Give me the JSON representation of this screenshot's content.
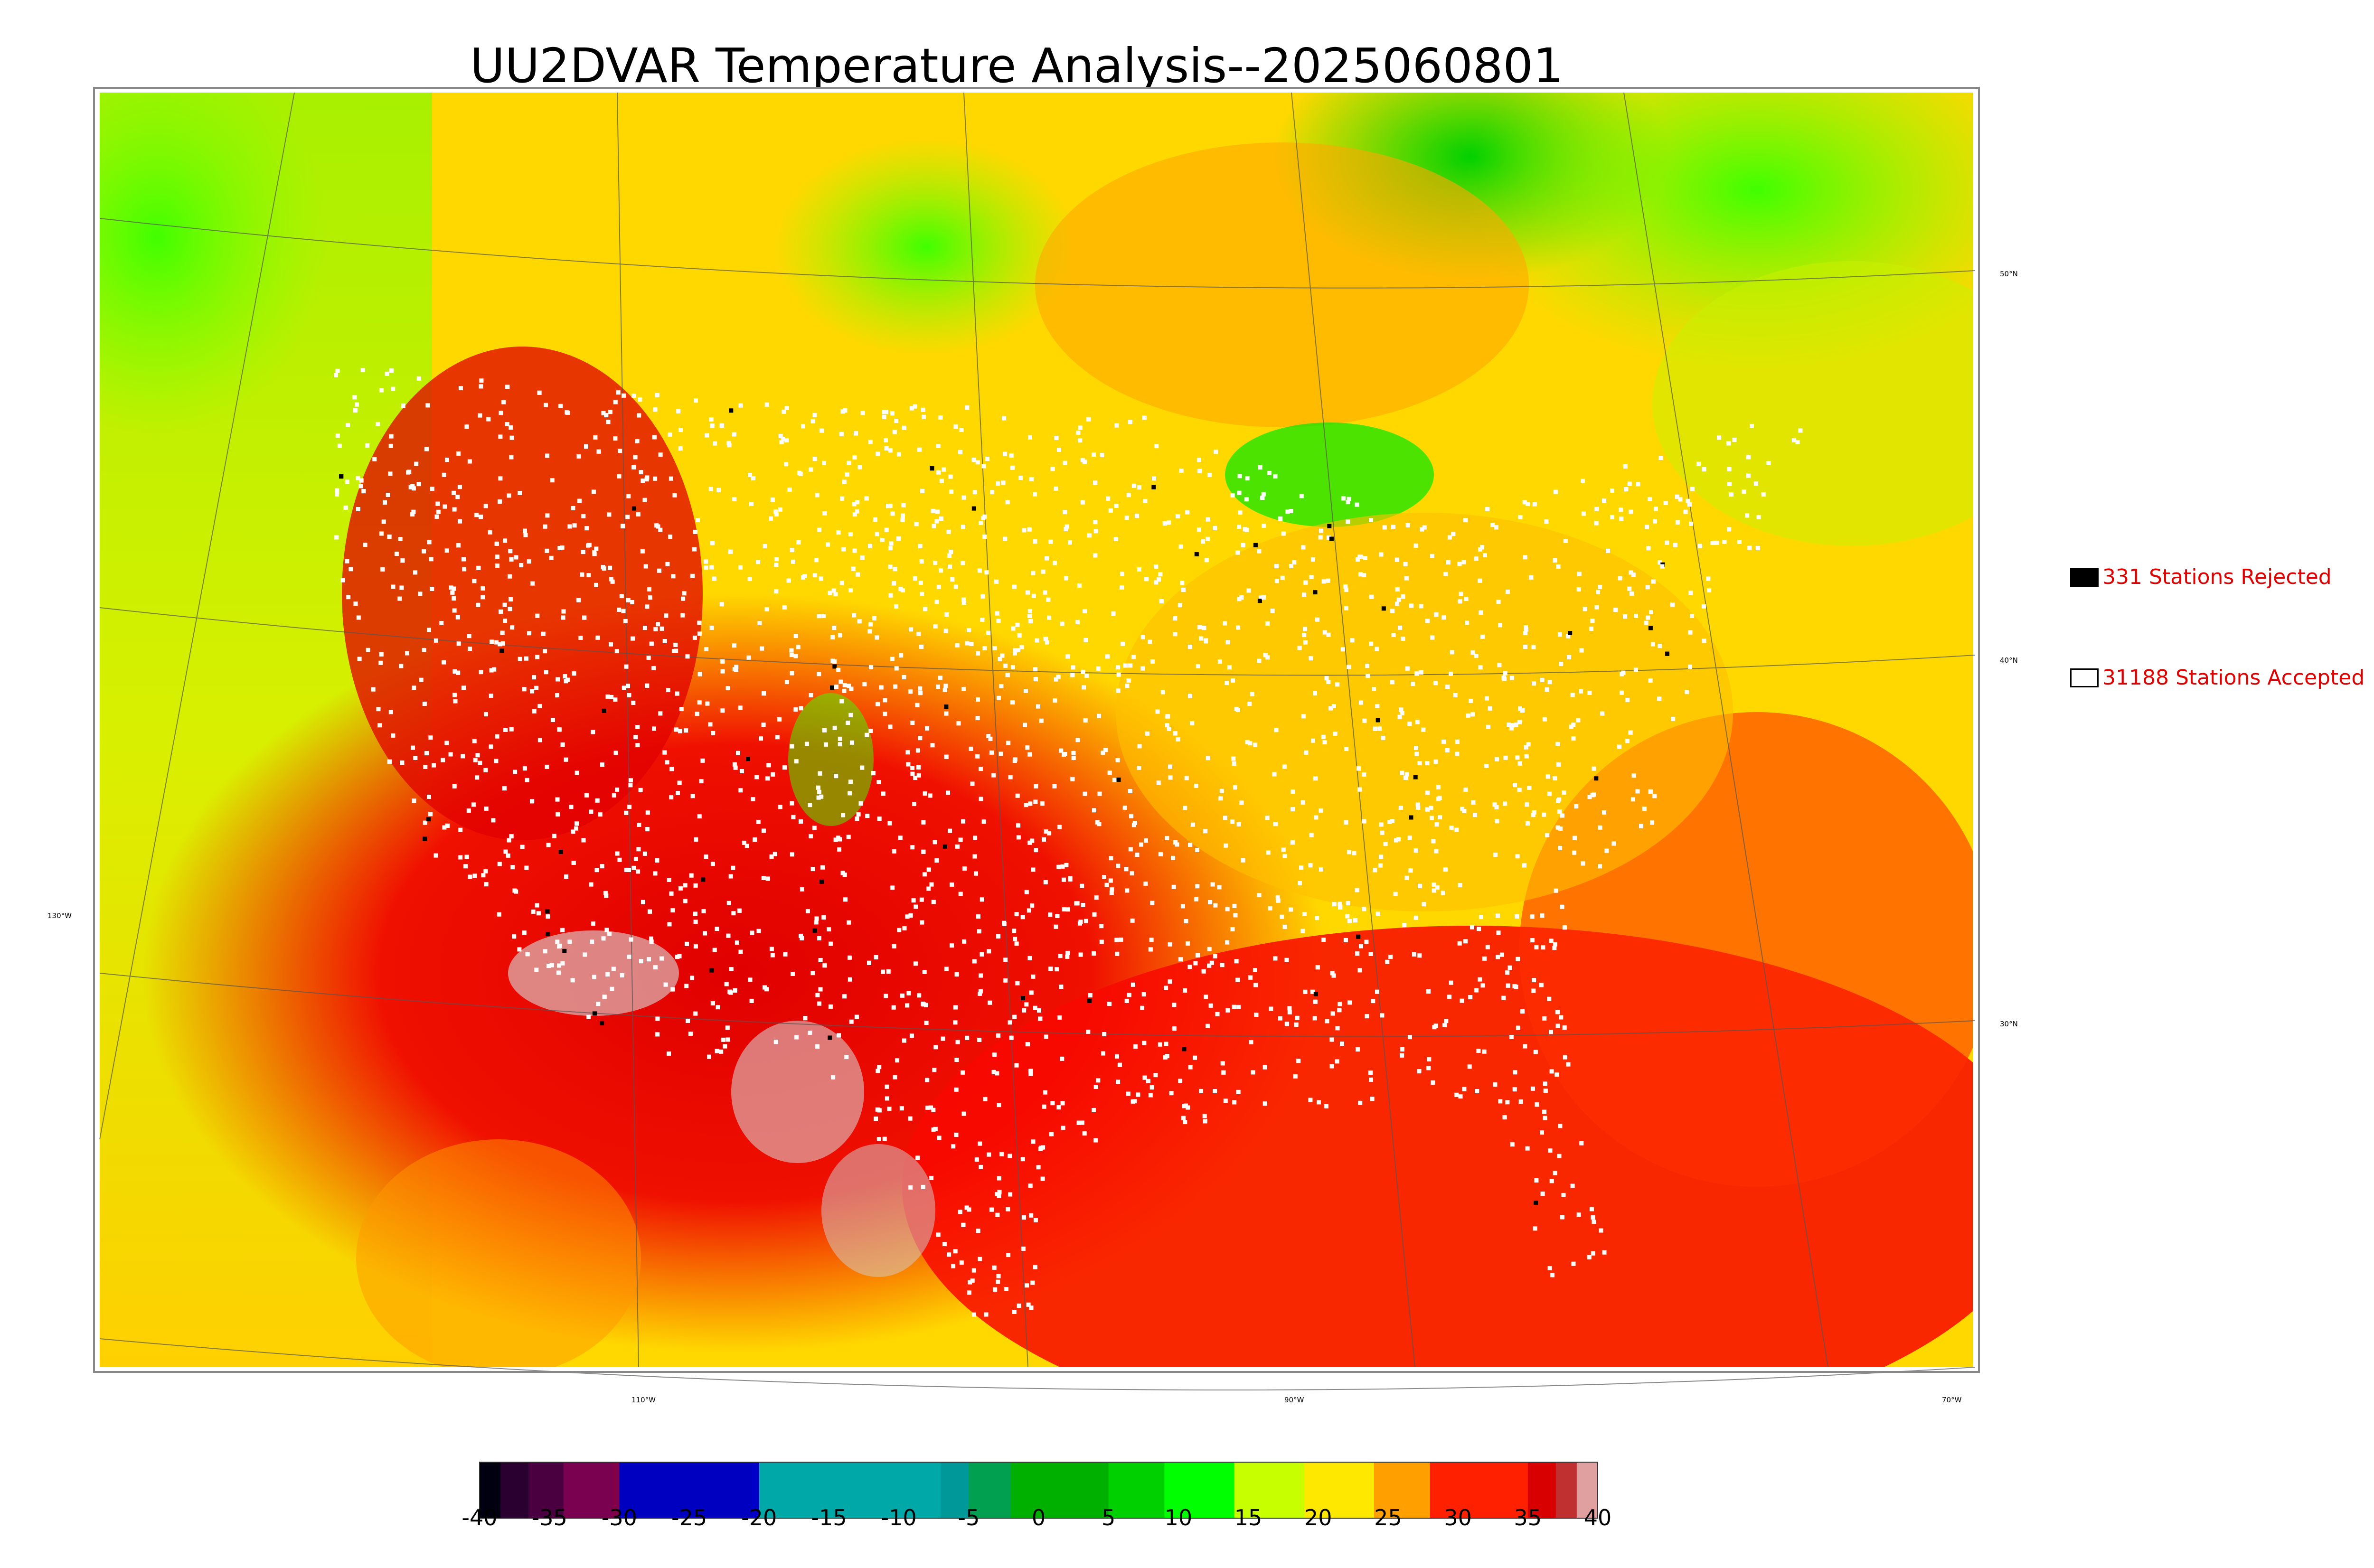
{
  "title": "UU2DVAR Temperature Analysis--2025060801",
  "legend": {
    "rejected_label": "331 Stations Rejected",
    "accepted_label": "31188 Stations Accepted",
    "rejected_color": "#000000",
    "accepted_color": "#ffffff"
  },
  "lat_labels": [
    "50°N",
    "40°N",
    "30°N"
  ],
  "lon_labels": [
    "130°W",
    "110°W",
    "90°W",
    "70°W"
  ],
  "colorbar": {
    "ticks": [
      "-40",
      "-35",
      "-30",
      "-25",
      "-20",
      "-15",
      "-10",
      "-5",
      "0",
      "5",
      "10",
      "15",
      "20",
      "25",
      "30",
      "35",
      "40"
    ],
    "range": [
      -40,
      40
    ],
    "stops": [
      {
        "value": -40,
        "color": "#000010"
      },
      {
        "value": -38.5,
        "color": "#2a0030"
      },
      {
        "value": -36.5,
        "color": "#4a0040"
      },
      {
        "value": -34,
        "color": "#7a0050"
      },
      {
        "value": -30.5,
        "color": "#80004a"
      },
      {
        "value": -30,
        "color": "#0000c0"
      },
      {
        "value": -20.5,
        "color": "#0000c8"
      },
      {
        "value": -20,
        "color": "#00a8a8"
      },
      {
        "value": -9,
        "color": "#00a8a8"
      },
      {
        "value": -7,
        "color": "#009898"
      },
      {
        "value": -5,
        "color": "#00a050"
      },
      {
        "value": -2,
        "color": "#00b000"
      },
      {
        "value": 5,
        "color": "#00d000"
      },
      {
        "value": 9,
        "color": "#00ff00"
      },
      {
        "value": 14,
        "color": "#c8ff00"
      },
      {
        "value": 19,
        "color": "#ffe800"
      },
      {
        "value": 24,
        "color": "#ffa000"
      },
      {
        "value": 28,
        "color": "#ff2000"
      },
      {
        "value": 35,
        "color": "#d80000"
      },
      {
        "value": 37,
        "color": "#c03030"
      },
      {
        "value": 38.5,
        "color": "#e0a0a0"
      },
      {
        "value": 40,
        "color": "#d8d8d8"
      }
    ]
  }
}
